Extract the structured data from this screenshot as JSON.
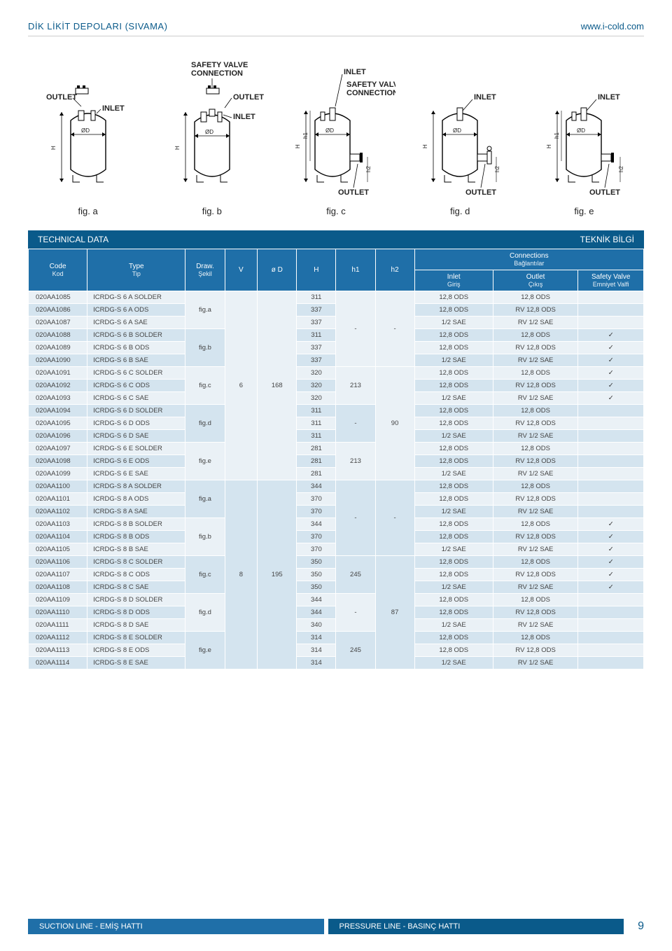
{
  "header": {
    "left": "DİK LİKİT DEPOLARI (SIVAMA)",
    "right": "www.i-cold.com"
  },
  "diagrams": {
    "labels": {
      "safety_valve_connection": "SAFETY VALVE CONNECTION",
      "inlet": "INLET",
      "outlet": "OUTLET",
      "diameter": "ØD",
      "h": "H",
      "h1": "h1",
      "h2": "h2"
    },
    "figs": [
      "fig. a",
      "fig. b",
      "fig. c",
      "fig. d",
      "fig. e"
    ]
  },
  "tech_bar": {
    "left": "TECHNICAL DATA",
    "right": "TEKNİK BİLGİ"
  },
  "table": {
    "headers": {
      "connections": "Connections",
      "connections_sub": "Bağlantılar",
      "code": "Code",
      "code_sub": "Kod",
      "type": "Type",
      "type_sub": "Tip",
      "draw": "Draw.",
      "draw_sub": "Şekil",
      "v": "V",
      "d": "ø D",
      "h": "H",
      "h1": "h1",
      "h2": "h2",
      "inlet": "Inlet",
      "inlet_sub": "Giriş",
      "outlet": "Outlet",
      "outlet_sub": "Çıkış",
      "safety": "Safety Valve",
      "safety_sub": "Emniyet Valfi"
    },
    "groups": [
      {
        "draw_span_rows": [
          {
            "code": "020AA1085",
            "type": "ICRDG-S 6 A SOLDER",
            "draw": "",
            "H": "311",
            "inlet": "12,8 ODS",
            "outlet": "12,8 ODS",
            "sv": false
          },
          {
            "code": "020AA1086",
            "type": "ICRDG-S 6 A ODS",
            "draw": "fig.a",
            "H": "337",
            "inlet": "12,8 ODS",
            "outlet": "RV 12,8 ODS",
            "sv": false
          },
          {
            "code": "020AA1087",
            "type": "ICRDG-S 6 A SAE",
            "draw": "",
            "H": "337",
            "inlet": "1/2 SAE",
            "outlet": "RV 1/2 SAE",
            "sv": false
          },
          {
            "code": "020AA1088",
            "type": "ICRDG-S 6 B SOLDER",
            "draw": "",
            "H": "311",
            "inlet": "12,8 ODS",
            "outlet": "12,8 ODS",
            "sv": true
          },
          {
            "code": "020AA1089",
            "type": "ICRDG-S 6 B ODS",
            "draw": "fig.b",
            "H": "337",
            "inlet": "12,8 ODS",
            "outlet": "RV 12,8 ODS",
            "sv": true
          },
          {
            "code": "020AA1090",
            "type": "ICRDG-S 6 B SAE",
            "draw": "",
            "H": "337",
            "inlet": "1/2 SAE",
            "outlet": "RV 1/2 SAE",
            "sv": true
          },
          {
            "code": "020AA1091",
            "type": "ICRDG-S 6 C SOLDER",
            "draw": "",
            "H": "320",
            "inlet": "12,8 ODS",
            "outlet": "12,8 ODS",
            "sv": true
          },
          {
            "code": "020AA1092",
            "type": "ICRDG-S 6 C ODS",
            "draw": "fig.c",
            "H": "320",
            "inlet": "12,8 ODS",
            "outlet": "RV 12,8 ODS",
            "sv": true
          },
          {
            "code": "020AA1093",
            "type": "ICRDG-S 6 C SAE",
            "draw": "",
            "H": "320",
            "inlet": "1/2 SAE",
            "outlet": "RV 1/2 SAE",
            "sv": true
          },
          {
            "code": "020AA1094",
            "type": "ICRDG-S 6 D SOLDER",
            "draw": "",
            "H": "311",
            "inlet": "12,8 ODS",
            "outlet": "12,8 ODS",
            "sv": false
          },
          {
            "code": "020AA1095",
            "type": "ICRDG-S 6 D ODS",
            "draw": "fig.d",
            "H": "311",
            "inlet": "12,8 ODS",
            "outlet": "RV 12,8 ODS",
            "sv": false
          },
          {
            "code": "020AA1096",
            "type": "ICRDG-S 6 D SAE",
            "draw": "",
            "H": "311",
            "inlet": "1/2 SAE",
            "outlet": "RV 1/2 SAE",
            "sv": false
          },
          {
            "code": "020AA1097",
            "type": "ICRDG-S 6 E SOLDER",
            "draw": "",
            "H": "281",
            "inlet": "12,8 ODS",
            "outlet": "12,8 ODS",
            "sv": false
          },
          {
            "code": "020AA1098",
            "type": "ICRDG-S 6 E ODS",
            "draw": "fig.e",
            "H": "281",
            "inlet": "12,8 ODS",
            "outlet": "RV 12,8 ODS",
            "sv": false
          },
          {
            "code": "020AA1099",
            "type": "ICRDG-S 6 E SAE",
            "draw": "",
            "H": "281",
            "inlet": "1/2 SAE",
            "outlet": "RV 1/2 SAE",
            "sv": false
          }
        ],
        "V": "6",
        "D": "168",
        "h1_blocks": [
          {
            "rows": 6,
            "val": "-"
          },
          {
            "rows": 3,
            "val": "213"
          },
          {
            "rows": 3,
            "val": "-"
          },
          {
            "rows": 3,
            "val": "213"
          }
        ],
        "h2_blocks": [
          {
            "rows": 6,
            "val": "-"
          },
          {
            "rows": 9,
            "val": "90"
          }
        ]
      },
      {
        "draw_span_rows": [
          {
            "code": "020AA1100",
            "type": "ICRDG-S 8 A SOLDER",
            "draw": "",
            "H": "344",
            "inlet": "12,8 ODS",
            "outlet": "12,8 ODS",
            "sv": false
          },
          {
            "code": "020AA1101",
            "type": "ICRDG-S 8 A ODS",
            "draw": "fig.a",
            "H": "370",
            "inlet": "12,8 ODS",
            "outlet": "RV 12,8 ODS",
            "sv": false
          },
          {
            "code": "020AA1102",
            "type": "ICRDG-S 8 A SAE",
            "draw": "",
            "H": "370",
            "inlet": "1/2 SAE",
            "outlet": "RV 1/2 SAE",
            "sv": false
          },
          {
            "code": "020AA1103",
            "type": "ICRDG-S 8 B SOLDER",
            "draw": "",
            "H": "344",
            "inlet": "12,8 ODS",
            "outlet": "12,8 ODS",
            "sv": true
          },
          {
            "code": "020AA1104",
            "type": "ICRDG-S 8 B ODS",
            "draw": "fig.b",
            "H": "370",
            "inlet": "12,8 ODS",
            "outlet": "RV 12,8 ODS",
            "sv": true
          },
          {
            "code": "020AA1105",
            "type": "ICRDG-S 8 B SAE",
            "draw": "",
            "H": "370",
            "inlet": "1/2 SAE",
            "outlet": "RV 1/2 SAE",
            "sv": true
          },
          {
            "code": "020AA1106",
            "type": "ICRDG-S 8 C SOLDER",
            "draw": "",
            "H": "350",
            "inlet": "12,8 ODS",
            "outlet": "12,8 ODS",
            "sv": true
          },
          {
            "code": "020AA1107",
            "type": "ICRDG-S 8 C ODS",
            "draw": "fig.c",
            "H": "350",
            "inlet": "12,8 ODS",
            "outlet": "RV 12,8 ODS",
            "sv": true
          },
          {
            "code": "020AA1108",
            "type": "ICRDG-S 8 C SAE",
            "draw": "",
            "H": "350",
            "inlet": "1/2 SAE",
            "outlet": "RV 1/2 SAE",
            "sv": true
          },
          {
            "code": "020AA1109",
            "type": "ICRDG-S 8 D SOLDER",
            "draw": "",
            "H": "344",
            "inlet": "12,8 ODS",
            "outlet": "12,8 ODS",
            "sv": false
          },
          {
            "code": "020AA1110",
            "type": "ICRDG-S 8 D ODS",
            "draw": "fig.d",
            "H": "344",
            "inlet": "12,8 ODS",
            "outlet": "RV 12,8 ODS",
            "sv": false
          },
          {
            "code": "020AA1111",
            "type": "ICRDG-S 8 D SAE",
            "draw": "",
            "H": "340",
            "inlet": "1/2 SAE",
            "outlet": "RV 1/2 SAE",
            "sv": false
          },
          {
            "code": "020AA1112",
            "type": "ICRDG-S 8 E SOLDER",
            "draw": "",
            "H": "314",
            "inlet": "12,8 ODS",
            "outlet": "12,8 ODS",
            "sv": false
          },
          {
            "code": "020AA1113",
            "type": "ICRDG-S 8 E ODS",
            "draw": "fig.e",
            "H": "314",
            "inlet": "12,8 ODS",
            "outlet": "RV 12,8 ODS",
            "sv": false
          },
          {
            "code": "020AA1114",
            "type": "ICRDG-S 8 E SAE",
            "draw": "",
            "H": "314",
            "inlet": "1/2 SAE",
            "outlet": "RV 1/2 SAE",
            "sv": false
          }
        ],
        "V": "8",
        "D": "195",
        "h1_blocks": [
          {
            "rows": 6,
            "val": "-"
          },
          {
            "rows": 3,
            "val": "245"
          },
          {
            "rows": 3,
            "val": "-"
          },
          {
            "rows": 3,
            "val": "245"
          }
        ],
        "h2_blocks": [
          {
            "rows": 6,
            "val": "-"
          },
          {
            "rows": 9,
            "val": "87"
          }
        ]
      }
    ]
  },
  "footer": {
    "suction": "SUCTION LINE - EMİŞ HATTI",
    "pressure": "PRESSURE LINE - BASINÇ HATTI",
    "page": "9"
  },
  "colors": {
    "brand": "#0a5a8a",
    "header_blue": "#1f6fa8",
    "row_light": "#eaf1f6",
    "row_alt": "#d4e4ef"
  }
}
